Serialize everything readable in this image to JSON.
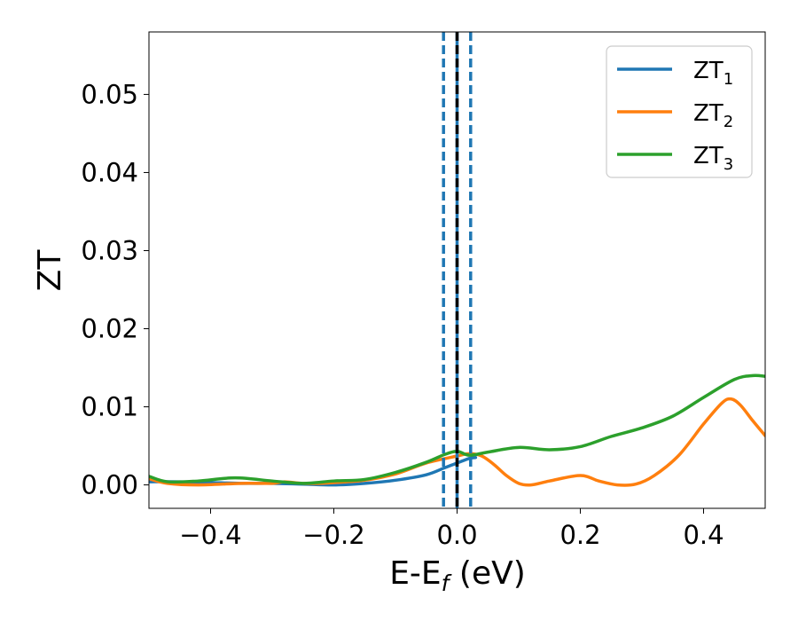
{
  "chart_data": {
    "type": "line",
    "xlabel": "E-E",
    "xlabel_sub": "f",
    "xlabel_unit": " (eV)",
    "ylabel": "ZT",
    "xlim": [
      -0.5,
      0.5
    ],
    "ylim": [
      -0.003,
      0.058
    ],
    "xticks": [
      -0.4,
      -0.2,
      0.0,
      0.2,
      0.4
    ],
    "xtick_labels": [
      "−0.4",
      "−0.2",
      "0.0",
      "0.2",
      "0.4"
    ],
    "yticks": [
      0.0,
      0.01,
      0.02,
      0.03,
      0.04,
      0.05
    ],
    "ytick_labels": [
      "0.00",
      "0.01",
      "0.02",
      "0.03",
      "0.04",
      "0.05"
    ],
    "grid": false,
    "legend_position": "top-right",
    "series": [
      {
        "name": "ZT",
        "sub": "1",
        "color": "#1f77b4",
        "points": [
          [
            -0.5,
            0.0004
          ],
          [
            -0.45,
            0.0004
          ],
          [
            -0.4,
            0.0003
          ],
          [
            -0.35,
            0.0002
          ],
          [
            -0.3,
            0.0002
          ],
          [
            -0.25,
            0.0001
          ],
          [
            -0.2,
            0.0
          ],
          [
            -0.15,
            0.0002
          ],
          [
            -0.1,
            0.0006
          ],
          [
            -0.05,
            0.0013
          ],
          [
            -0.02,
            0.0022
          ],
          [
            0.0,
            0.0028
          ],
          [
            0.02,
            0.0034
          ],
          [
            0.03,
            0.0035
          ]
        ]
      },
      {
        "name": "ZT",
        "sub": "2",
        "color": "#ff7f0e",
        "points": [
          [
            -0.5,
            0.0008
          ],
          [
            -0.47,
            0.0002
          ],
          [
            -0.42,
            0.0
          ],
          [
            -0.35,
            0.0002
          ],
          [
            -0.3,
            0.0002
          ],
          [
            -0.28,
            0.0004
          ],
          [
            -0.25,
            0.0002
          ],
          [
            -0.22,
            0.0002
          ],
          [
            -0.18,
            0.0004
          ],
          [
            -0.15,
            0.0006
          ],
          [
            -0.1,
            0.0014
          ],
          [
            -0.05,
            0.0028
          ],
          [
            0.0,
            0.0037
          ],
          [
            0.02,
            0.004
          ],
          [
            0.04,
            0.0037
          ],
          [
            0.06,
            0.0026
          ],
          [
            0.08,
            0.0012
          ],
          [
            0.1,
            0.0002
          ],
          [
            0.12,
            0.0
          ],
          [
            0.15,
            0.0005
          ],
          [
            0.2,
            0.0012
          ],
          [
            0.23,
            0.0005
          ],
          [
            0.26,
            0.0
          ],
          [
            0.29,
            0.0001
          ],
          [
            0.32,
            0.0012
          ],
          [
            0.36,
            0.0038
          ],
          [
            0.4,
            0.0078
          ],
          [
            0.43,
            0.0105
          ],
          [
            0.445,
            0.011
          ],
          [
            0.46,
            0.0102
          ],
          [
            0.48,
            0.0082
          ],
          [
            0.5,
            0.0063
          ]
        ]
      },
      {
        "name": "ZT",
        "sub": "3",
        "color": "#2ca02c",
        "points": [
          [
            -0.5,
            0.0011
          ],
          [
            -0.47,
            0.0004
          ],
          [
            -0.42,
            0.0005
          ],
          [
            -0.36,
            0.0009
          ],
          [
            -0.3,
            0.0005
          ],
          [
            -0.25,
            0.0002
          ],
          [
            -0.2,
            0.0005
          ],
          [
            -0.15,
            0.0007
          ],
          [
            -0.1,
            0.0016
          ],
          [
            -0.05,
            0.0029
          ],
          [
            -0.02,
            0.0039
          ],
          [
            0.0,
            0.0043
          ],
          [
            0.02,
            0.0038
          ],
          [
            0.05,
            0.0042
          ],
          [
            0.1,
            0.0048
          ],
          [
            0.15,
            0.0045
          ],
          [
            0.2,
            0.0049
          ],
          [
            0.25,
            0.0062
          ],
          [
            0.3,
            0.0073
          ],
          [
            0.35,
            0.0088
          ],
          [
            0.4,
            0.0112
          ],
          [
            0.45,
            0.0135
          ],
          [
            0.48,
            0.014
          ],
          [
            0.5,
            0.0139
          ]
        ]
      }
    ],
    "vlines": [
      {
        "x": -0.022,
        "color": "#1f77b4",
        "style": "dashed"
      },
      {
        "x": 0.0,
        "color": "#1f77b4",
        "style": "solid"
      },
      {
        "x": 0.0,
        "color": "#000000",
        "style": "dashed"
      },
      {
        "x": 0.022,
        "color": "#1f77b4",
        "style": "dashed"
      }
    ]
  }
}
